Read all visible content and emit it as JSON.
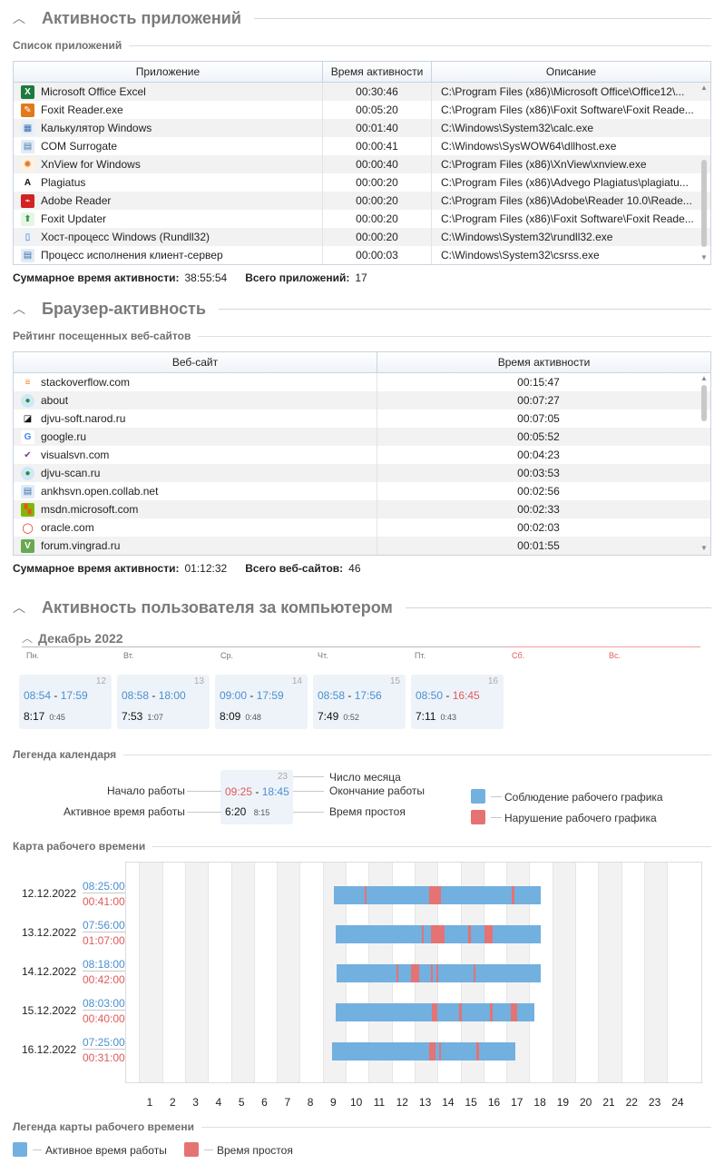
{
  "apps_section": {
    "title": "Активность приложений"
  },
  "apps_list": {
    "label": "Список приложений",
    "columns": [
      "Приложение",
      "Время активности",
      "Описание"
    ],
    "rows": [
      {
        "icon": "excel-icon",
        "name": "Microsoft Office Excel",
        "time": "00:30:46",
        "desc": "C:\\Program Files (x86)\\Microsoft Office\\Office12\\..."
      },
      {
        "icon": "foxit-reader-icon",
        "name": "Foxit Reader.exe",
        "time": "00:05:20",
        "desc": "C:\\Program Files (x86)\\Foxit Software\\Foxit Reade..."
      },
      {
        "icon": "calculator-icon",
        "name": "Калькулятор Windows",
        "time": "00:01:40",
        "desc": "C:\\Windows\\System32\\calc.exe"
      },
      {
        "icon": "com-surrogate-icon",
        "name": "COM Surrogate",
        "time": "00:00:41",
        "desc": "C:\\Windows\\SysWOW64\\dllhost.exe"
      },
      {
        "icon": "xnview-icon",
        "name": "XnView for Windows",
        "time": "00:00:40",
        "desc": "C:\\Program Files (x86)\\XnView\\xnview.exe"
      },
      {
        "icon": "plagiatus-icon",
        "name": "Plagiatus",
        "time": "00:00:20",
        "desc": "C:\\Program Files (x86)\\Advego Plagiatus\\plagiatu..."
      },
      {
        "icon": "adobe-reader-icon",
        "name": "Adobe Reader",
        "time": "00:00:20",
        "desc": "C:\\Program Files (x86)\\Adobe\\Reader 10.0\\Reade..."
      },
      {
        "icon": "foxit-updater-icon",
        "name": "Foxit Updater",
        "time": "00:00:20",
        "desc": "C:\\Program Files (x86)\\Foxit Software\\Foxit Reade..."
      },
      {
        "icon": "rundll-icon",
        "name": "Хост-процесс Windows (Rundll32)",
        "time": "00:00:20",
        "desc": "C:\\Windows\\System32\\rundll32.exe"
      },
      {
        "icon": "csrss-icon",
        "name": "Процесс исполнения клиент-сервер",
        "time": "00:00:03",
        "desc": "C:\\Windows\\System32\\csrss.exe"
      }
    ],
    "summary": {
      "total_label": "Суммарное время активности:",
      "total_value": "38:55:54",
      "count_label": "Всего приложений:",
      "count_value": "17"
    }
  },
  "browser_section": {
    "title": "Браузер-активность"
  },
  "sites_list": {
    "label": "Рейтинг посещенных веб-сайтов",
    "columns": [
      "Веб-сайт",
      "Время активности"
    ],
    "rows": [
      {
        "icon": "stackoverflow-icon",
        "name": "stackoverflow.com",
        "time": "00:15:47"
      },
      {
        "icon": "globe-icon",
        "name": "about",
        "time": "00:07:27"
      },
      {
        "icon": "djvu-soft-icon",
        "name": "djvu-soft.narod.ru",
        "time": "00:07:05"
      },
      {
        "icon": "google-icon",
        "name": "google.ru",
        "time": "00:05:52"
      },
      {
        "icon": "visualsvn-icon",
        "name": "visualsvn.com",
        "time": "00:04:23"
      },
      {
        "icon": "globe-icon",
        "name": "djvu-scan.ru",
        "time": "00:03:53"
      },
      {
        "icon": "ankhsvn-icon",
        "name": "ankhsvn.open.collab.net",
        "time": "00:02:56"
      },
      {
        "icon": "microsoft-icon",
        "name": "msdn.microsoft.com",
        "time": "00:02:33"
      },
      {
        "icon": "oracle-icon",
        "name": "oracle.com",
        "time": "00:02:03"
      },
      {
        "icon": "vingrad-icon",
        "name": "forum.vingrad.ru",
        "time": "00:01:55"
      }
    ],
    "summary": {
      "total_label": "Суммарное время активности:",
      "total_value": "01:12:32",
      "count_label": "Всего веб-сайтов:",
      "count_value": "46"
    }
  },
  "user_section": {
    "title": "Активность пользователя за компьютером"
  },
  "calendar": {
    "month": "Декабрь 2022",
    "weekdays": [
      "Пн.",
      "Вт.",
      "Ср.",
      "Чт.",
      "Пт.",
      "Сб.",
      "Вс."
    ],
    "days": [
      {
        "num": "12",
        "start": "08:54",
        "end": "17:59",
        "active": "8:17",
        "idle": "0:45",
        "end_red": false
      },
      {
        "num": "13",
        "start": "08:58",
        "end": "18:00",
        "active": "7:53",
        "idle": "1:07",
        "end_red": false
      },
      {
        "num": "14",
        "start": "09:00",
        "end": "17:59",
        "active": "8:09",
        "idle": "0:48",
        "end_red": false
      },
      {
        "num": "15",
        "start": "08:58",
        "end": "17:56",
        "active": "7:49",
        "idle": "0:52",
        "end_red": false
      },
      {
        "num": "16",
        "start": "08:50",
        "end": "16:45",
        "active": "7:11",
        "idle": "0:43",
        "end_red": true
      }
    ]
  },
  "calendar_legend": {
    "label": "Легенда календаря",
    "day_number": "23",
    "start": "09:25",
    "end": "18:45",
    "active": "6:20",
    "idle": "8:15",
    "start_label": "Начало работы",
    "active_label": "Активное время работы",
    "daynum_label": "Число месяца",
    "end_label": "Окончание работы",
    "idle_label": "Время простоя",
    "ok_label": "Соблюдение рабочего графика",
    "violation_label": "Нарушение рабочего графика",
    "ok_color": "#72b0e0",
    "violation_color": "#e57373"
  },
  "work_map": {
    "label": "Карта рабочего времени",
    "hours": [
      "1",
      "2",
      "3",
      "4",
      "5",
      "6",
      "7",
      "8",
      "9",
      "10",
      "11",
      "12",
      "13",
      "14",
      "15",
      "16",
      "17",
      "18",
      "19",
      "20",
      "21",
      "22",
      "23",
      "24"
    ],
    "rows": [
      {
        "date": "12.12.2022",
        "active": "08:25:00",
        "idle": "00:41:00",
        "start": 8.97,
        "end": 18.0,
        "idle_segments": [
          [
            10.33,
            10.4
          ],
          [
            13.15,
            13.65
          ],
          [
            16.75,
            16.85
          ]
        ]
      },
      {
        "date": "13.12.2022",
        "active": "07:56:00",
        "idle": "01:07:00",
        "start": 9.05,
        "end": 18.0,
        "idle_segments": [
          [
            12.8,
            12.9
          ],
          [
            13.2,
            13.8
          ],
          [
            14.85,
            14.95
          ],
          [
            15.55,
            15.9
          ]
        ]
      },
      {
        "date": "14.12.2022",
        "active": "08:18:00",
        "idle": "00:42:00",
        "start": 9.1,
        "end": 18.0,
        "idle_segments": [
          [
            11.7,
            11.78
          ],
          [
            12.35,
            12.7
          ],
          [
            13.2,
            13.3
          ],
          [
            13.45,
            13.55
          ],
          [
            15.08,
            15.15
          ]
        ]
      },
      {
        "date": "15.12.2022",
        "active": "08:03:00",
        "idle": "00:40:00",
        "start": 9.05,
        "end": 17.7,
        "idle_segments": [
          [
            13.25,
            13.5
          ],
          [
            14.45,
            14.55
          ],
          [
            15.8,
            15.9
          ],
          [
            16.7,
            16.95
          ]
        ]
      },
      {
        "date": "16.12.2022",
        "active": "07:25:00",
        "idle": "00:31:00",
        "start": 8.9,
        "end": 16.9,
        "idle_segments": [
          [
            13.15,
            13.4
          ],
          [
            13.55,
            13.62
          ],
          [
            15.18,
            15.3
          ]
        ]
      }
    ]
  },
  "map_legend": {
    "label": "Легенда карты рабочего времени",
    "active_label": "Активное время работы",
    "idle_label": "Время простоя",
    "active_color": "#72b0e0",
    "idle_color": "#e57373"
  }
}
